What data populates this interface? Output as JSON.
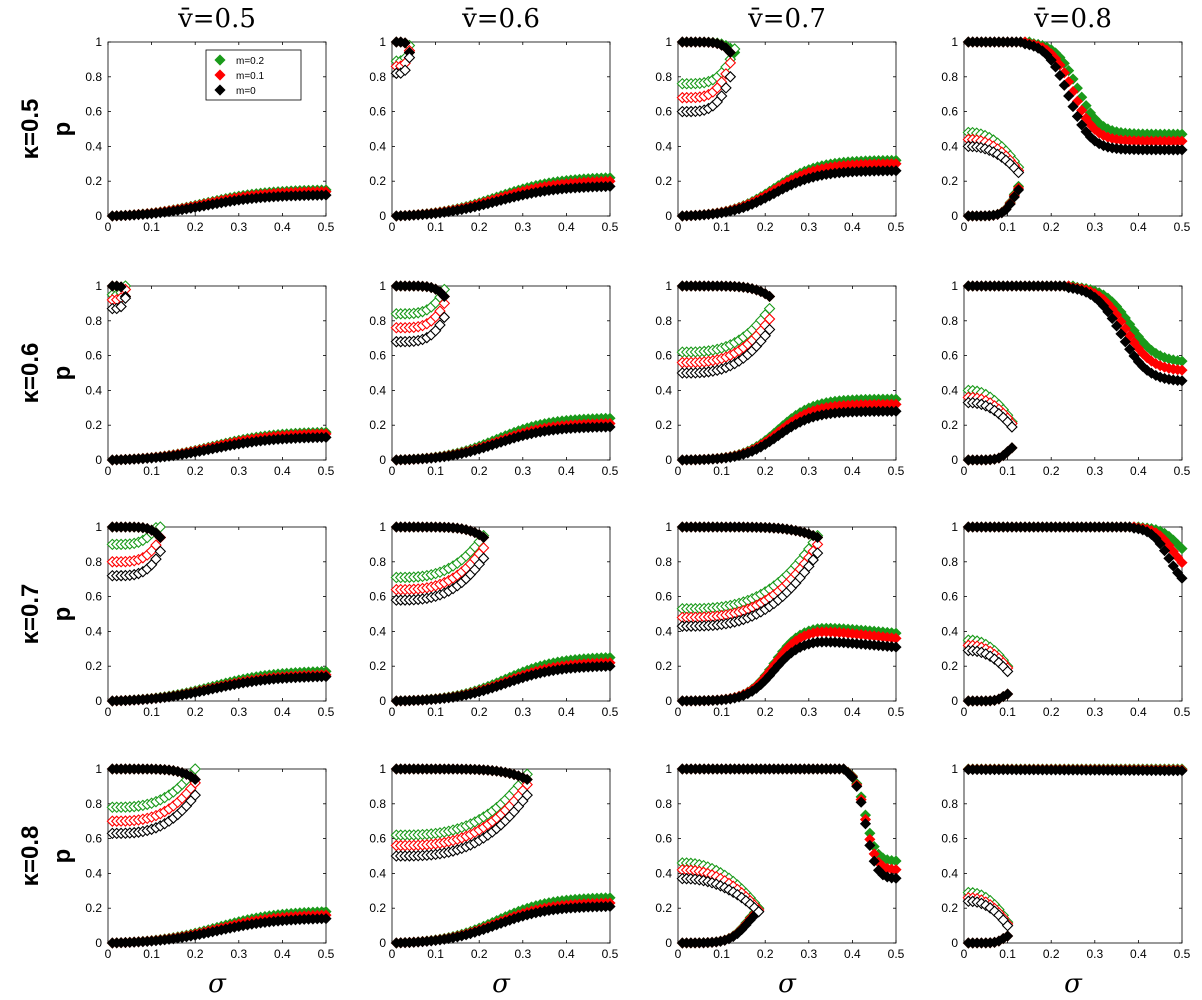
{
  "figure": {
    "column_titles": [
      "v̄=0.5",
      "v̄=0.6",
      "v̄=0.7",
      "v̄=0.8"
    ],
    "row_titles": [
      "κ=0.5",
      "κ=0.6",
      "κ=0.7",
      "κ=0.8"
    ],
    "ylabel": "p",
    "xlabel": "σ"
  },
  "legend": {
    "location": "top-right of first panel",
    "entries": [
      {
        "label": "m=0.2",
        "color": "#1a9a1a"
      },
      {
        "label": "m=0.1",
        "color": "#ff0000"
      },
      {
        "label": "m=0",
        "color": "#000000"
      }
    ]
  },
  "axes": {
    "xticks": [
      "0",
      "0.1",
      "0.2",
      "0.3",
      "0.4",
      "0.5"
    ],
    "yticks": [
      "0",
      "0.2",
      "0.4",
      "0.6",
      "0.8",
      "1"
    ]
  },
  "chart_data": {
    "type": "scatter",
    "marker": "diamond (filled = stable branch, open = intermediate branch)",
    "xlim": [
      0,
      0.5
    ],
    "ylim": [
      0,
      1
    ],
    "grid": false,
    "series_colors": {
      "m=0.2": "#1a9a1a",
      "m=0.1": "#ff0000",
      "m=0": "#000000"
    },
    "panels": [
      {
        "row": 0,
        "col": 0,
        "low": {
          "ends": [
            0.15,
            0.14,
            0.12
          ],
          "mid": 0.22,
          "w": 0.07
        },
        "high": null,
        "open": null
      },
      {
        "row": 0,
        "col": 1,
        "low": {
          "ends": [
            0.22,
            0.2,
            0.17
          ],
          "mid": 0.24,
          "w": 0.07
        },
        "high": {
          "start": 0.01,
          "ends": [
            0.04,
            0.04,
            0.04
          ]
        },
        "open": {
          "starts": [
            0.89,
            0.86,
            0.82
          ],
          "amp": 0.09,
          "k": 4
        }
      },
      {
        "row": 0,
        "col": 2,
        "low": {
          "ends": [
            0.32,
            0.3,
            0.26
          ],
          "mid": 0.22,
          "w": 0.05
        },
        "high": {
          "start": 0.01,
          "ends": [
            0.13,
            0.12,
            0.12
          ]
        },
        "open": {
          "starts": [
            0.76,
            0.68,
            0.6
          ],
          "amp": 0.2,
          "k": 4
        }
      },
      {
        "row": 0,
        "col": 3,
        "low": {
          "ends": [
            0.17,
            0.16,
            0.15
          ],
          "xmax": 0.125,
          "mid": 0.115,
          "w": 0.012
        },
        "high": {
          "start": 0.01,
          "ends": [
            0.47,
            0.43,
            0.38
          ],
          "mid": [
            0.26,
            0.25,
            0.24
          ],
          "w": 0.025
        },
        "open": {
          "starts": [
            0.48,
            0.44,
            0.4
          ],
          "ends": [
            0.28,
            0.26,
            0.25
          ],
          "xmax": 0.125
        }
      },
      {
        "row": 1,
        "col": 0,
        "low": {
          "ends": [
            0.16,
            0.15,
            0.13
          ],
          "mid": 0.24,
          "w": 0.07
        },
        "high": {
          "start": 0.01,
          "ends": [
            0.04,
            0.04,
            0.04
          ]
        },
        "open": {
          "starts": [
            0.95,
            0.92,
            0.87
          ],
          "amp": 0.06,
          "k": 4
        }
      },
      {
        "row": 1,
        "col": 1,
        "low": {
          "ends": [
            0.24,
            0.21,
            0.19
          ],
          "mid": 0.24,
          "w": 0.06
        },
        "high": {
          "start": 0.01,
          "ends": [
            0.12,
            0.12,
            0.12
          ]
        },
        "open": {
          "starts": [
            0.84,
            0.76,
            0.68
          ],
          "amp": 0.14,
          "k": 4
        }
      },
      {
        "row": 1,
        "col": 2,
        "low": {
          "ends": [
            0.35,
            0.32,
            0.28
          ],
          "mid": 0.23,
          "w": 0.04
        },
        "high": {
          "start": 0.01,
          "ends": [
            0.21,
            0.21,
            0.21
          ]
        },
        "open": {
          "starts": [
            0.62,
            0.56,
            0.5
          ],
          "amp": 0.25,
          "k": 3
        }
      },
      {
        "row": 1,
        "col": 3,
        "low": {
          "ends": [
            0.07,
            0.07,
            0.07
          ],
          "xmax": 0.11,
          "mid": 0.1,
          "w": 0.01
        },
        "high": {
          "start": 0.01,
          "ends": [
            0.56,
            0.51,
            0.45
          ],
          "mid": [
            0.38,
            0.37,
            0.36
          ],
          "w": 0.03
        },
        "open": {
          "starts": [
            0.4,
            0.36,
            0.33
          ],
          "ends": [
            0.22,
            0.21,
            0.19
          ],
          "xmax": 0.11
        }
      },
      {
        "row": 2,
        "col": 0,
        "low": {
          "ends": [
            0.17,
            0.15,
            0.14
          ],
          "mid": 0.24,
          "w": 0.07
        },
        "high": {
          "start": 0.01,
          "ends": [
            0.12,
            0.12,
            0.12
          ]
        },
        "open": {
          "starts": [
            0.9,
            0.8,
            0.72
          ],
          "amp": 0.14,
          "k": 4
        }
      },
      {
        "row": 2,
        "col": 1,
        "low": {
          "ends": [
            0.25,
            0.22,
            0.2
          ],
          "mid": 0.26,
          "w": 0.06
        },
        "high": {
          "start": 0.01,
          "ends": [
            0.21,
            0.21,
            0.21
          ]
        },
        "open": {
          "starts": [
            0.71,
            0.64,
            0.58
          ],
          "amp": 0.24,
          "k": 3
        }
      },
      {
        "row": 2,
        "col": 2,
        "low": {
          "ends": [
            0.39,
            0.36,
            0.31
          ],
          "peak": [
            0.43,
            0.41,
            0.35
          ],
          "mid": 0.22,
          "w": 0.03
        },
        "high": {
          "start": 0.01,
          "ends": [
            0.32,
            0.32,
            0.32
          ]
        },
        "open": {
          "starts": [
            0.53,
            0.48,
            0.43
          ],
          "amp": 0.42,
          "k": 3
        }
      },
      {
        "row": 2,
        "col": 3,
        "low": {
          "ends": [
            0.04,
            0.04,
            0.04
          ],
          "xmax": 0.1,
          "mid": 0.09,
          "w": 0.008
        },
        "high": {
          "start": 0.01,
          "ends": [
            0.8,
            0.72,
            0.64
          ],
          "mid": [
            0.49,
            0.48,
            0.47
          ],
          "w": 0.02
        },
        "open": {
          "starts": [
            0.35,
            0.32,
            0.29
          ],
          "ends": [
            0.2,
            0.19,
            0.17
          ],
          "xmax": 0.1
        }
      },
      {
        "row": 3,
        "col": 0,
        "low": {
          "ends": [
            0.18,
            0.16,
            0.14
          ],
          "mid": 0.25,
          "w": 0.07
        },
        "high": {
          "start": 0.01,
          "ends": [
            0.2,
            0.2,
            0.2
          ]
        },
        "open": {
          "starts": [
            0.78,
            0.7,
            0.63
          ],
          "amp": 0.22,
          "k": 3
        }
      },
      {
        "row": 3,
        "col": 1,
        "low": {
          "ends": [
            0.26,
            0.23,
            0.21
          ],
          "mid": 0.24,
          "w": 0.06
        },
        "high": {
          "start": 0.01,
          "ends": [
            0.31,
            0.31,
            0.31
          ]
        },
        "open": {
          "starts": [
            0.62,
            0.56,
            0.5
          ],
          "amp": 0.35,
          "k": 3
        }
      },
      {
        "row": 3,
        "col": 2,
        "low": {
          "ends": [
            0.2,
            0.19,
            0.18
          ],
          "xmax": 0.185,
          "mid": 0.16,
          "w": 0.02
        },
        "high": {
          "start": 0.01,
          "ends": [
            0.47,
            0.42,
            0.37
          ],
          "mid": [
            0.43,
            0.43,
            0.43
          ],
          "w": 0.012
        },
        "open": {
          "starts": [
            0.46,
            0.42,
            0.37
          ],
          "ends": [
            0.2,
            0.19,
            0.18
          ],
          "xmax": 0.185
        }
      },
      {
        "row": 3,
        "col": 3,
        "low": {
          "ends": [
            0.04,
            0.04,
            0.04
          ],
          "xmax": 0.1,
          "mid": 0.09,
          "w": 0.008
        },
        "high": {
          "start": 0.01,
          "ends": [
            1.0,
            0.99,
            0.98
          ],
          "mid": [
            0.49,
            0.5,
            0.5
          ],
          "w": 0.3
        },
        "open": {
          "starts": [
            0.29,
            0.26,
            0.24
          ],
          "ends": [
            0.12,
            0.11,
            0.1
          ],
          "xmax": 0.1
        }
      }
    ]
  }
}
